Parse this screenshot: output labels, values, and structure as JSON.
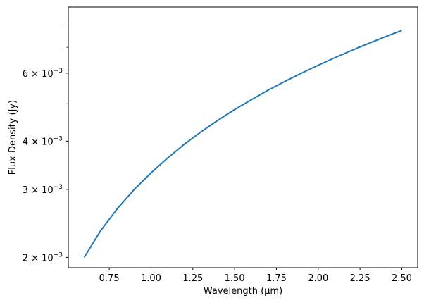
{
  "chart_data": {
    "type": "line",
    "title": "",
    "xlabel": "Wavelength (μm)",
    "ylabel": "Flux Density (Jy)",
    "xlim": [
      0.505,
      2.595
    ],
    "ylim": [
      0.0018806,
      0.0089
    ],
    "yscale": "log",
    "grid": false,
    "x_ticks": [
      {
        "value": 0.75,
        "label": "0.75"
      },
      {
        "value": 1.0,
        "label": "1.00"
      },
      {
        "value": 1.25,
        "label": "1.25"
      },
      {
        "value": 1.5,
        "label": "1.50"
      },
      {
        "value": 1.75,
        "label": "1.75"
      },
      {
        "value": 2.0,
        "label": "2.00"
      },
      {
        "value": 2.25,
        "label": "2.25"
      },
      {
        "value": 2.5,
        "label": "2.50"
      }
    ],
    "y_major_ticks": [
      {
        "value": 0.002,
        "mantissa": "2",
        "label": "2 × 10^-3"
      },
      {
        "value": 0.003,
        "mantissa": "3",
        "label": "3 × 10^-3"
      },
      {
        "value": 0.004,
        "mantissa": "4",
        "label": "4 × 10^-3"
      },
      {
        "value": 0.006,
        "mantissa": "6",
        "label": "6 × 10^-3"
      }
    ],
    "y_minor_ticks": [
      0.005,
      0.007,
      0.008
    ],
    "y_exponent": "−3",
    "series": [
      {
        "color": "#1f77b4",
        "x": [
          0.6,
          0.7,
          0.8,
          0.9,
          1.0,
          1.1,
          1.2,
          1.3,
          1.4,
          1.5,
          1.6,
          1.7,
          1.8,
          1.9,
          2.0,
          2.1,
          2.2,
          2.3,
          2.4,
          2.5
        ],
        "y": [
          0.002,
          0.00235,
          0.00268,
          0.003,
          0.00331,
          0.00362,
          0.00393,
          0.00423,
          0.00453,
          0.00483,
          0.00512,
          0.00542,
          0.00571,
          0.006,
          0.00629,
          0.00658,
          0.00687,
          0.00716,
          0.00745,
          0.00774
        ]
      }
    ]
  }
}
